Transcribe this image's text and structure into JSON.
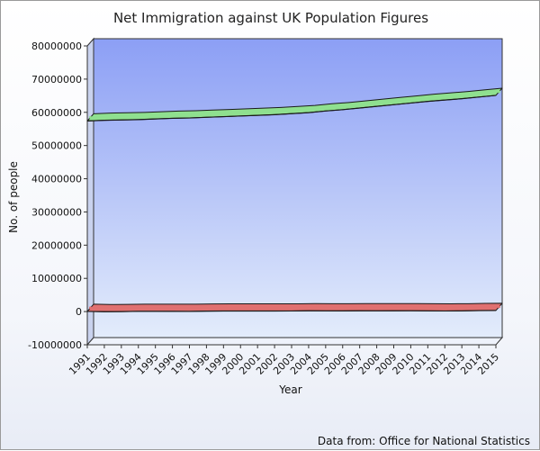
{
  "chart_data": {
    "type": "line",
    "title": "Net Immigration against UK Population Figures",
    "xlabel": "Year",
    "ylabel": "No. of people",
    "ylim": [
      -10000000,
      80000000
    ],
    "yticks": [
      -10000000,
      0,
      10000000,
      20000000,
      30000000,
      40000000,
      50000000,
      60000000,
      70000000,
      80000000
    ],
    "categories": [
      "1991",
      "1992",
      "1993",
      "1994",
      "1995",
      "1996",
      "1997",
      "1998",
      "1999",
      "2000",
      "2001",
      "2002",
      "2003",
      "2004",
      "2005",
      "2006",
      "2007",
      "2008",
      "2009",
      "2010",
      "2011",
      "2012",
      "2013",
      "2014",
      "2015"
    ],
    "grid": false,
    "legend": "none",
    "series": [
      {
        "color": "#8fe08f",
        "values": [
          57400000,
          57600000,
          57700000,
          57800000,
          58000000,
          58200000,
          58300000,
          58500000,
          58700000,
          58900000,
          59100000,
          59300000,
          59600000,
          59900000,
          60400000,
          60800000,
          61300000,
          61800000,
          62300000,
          62800000,
          63300000,
          63700000,
          64100000,
          64600000,
          65100000
        ]
      },
      {
        "color": "#e07070",
        "values": [
          50000,
          -40000,
          -10000,
          80000,
          80000,
          60000,
          50000,
          140000,
          160000,
          160000,
          170000,
          160000,
          180000,
          240000,
          210000,
          200000,
          230000,
          220000,
          230000,
          250000,
          210000,
          180000,
          210000,
          310000,
          330000
        ]
      }
    ]
  },
  "footer": {
    "source": "Data from: Office for National Statistics"
  }
}
